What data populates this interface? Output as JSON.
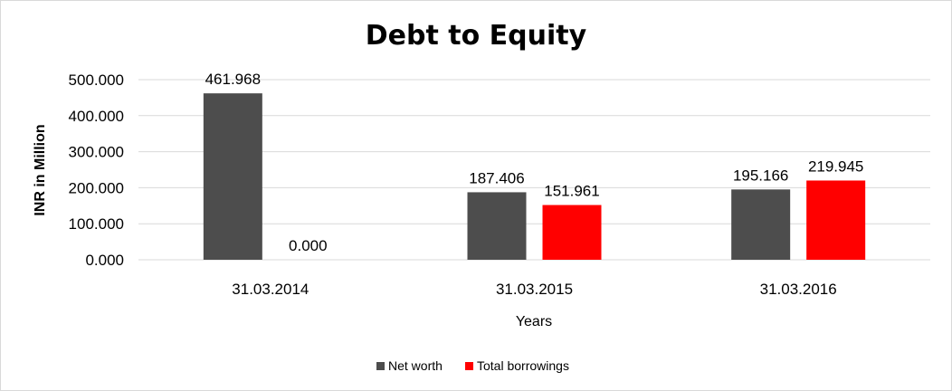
{
  "chart_data": {
    "type": "bar",
    "title": "Debt to Equity",
    "xlabel": "Years",
    "ylabel": "INR in Million",
    "categories": [
      "31.03.2014",
      "31.03.2015",
      "31.03.2016"
    ],
    "series": [
      {
        "name": "Net worth",
        "color": "#4d4d4d",
        "values": [
          461.968,
          187.406,
          195.166
        ],
        "labels": [
          "461.968",
          "187.406",
          "195.166"
        ]
      },
      {
        "name": "Total borrowings",
        "color": "#ff0000",
        "values": [
          0.0,
          151.961,
          219.945
        ],
        "labels": [
          "0.000",
          "151.961",
          "219.945"
        ]
      }
    ],
    "yticks": [
      "0.000",
      "100.000",
      "200.000",
      "300.000",
      "400.000",
      "500.000"
    ],
    "ytick_values": [
      0,
      100,
      200,
      300,
      400,
      500
    ],
    "ylim": [
      0,
      500
    ],
    "grid": true,
    "legend": "bottom"
  }
}
